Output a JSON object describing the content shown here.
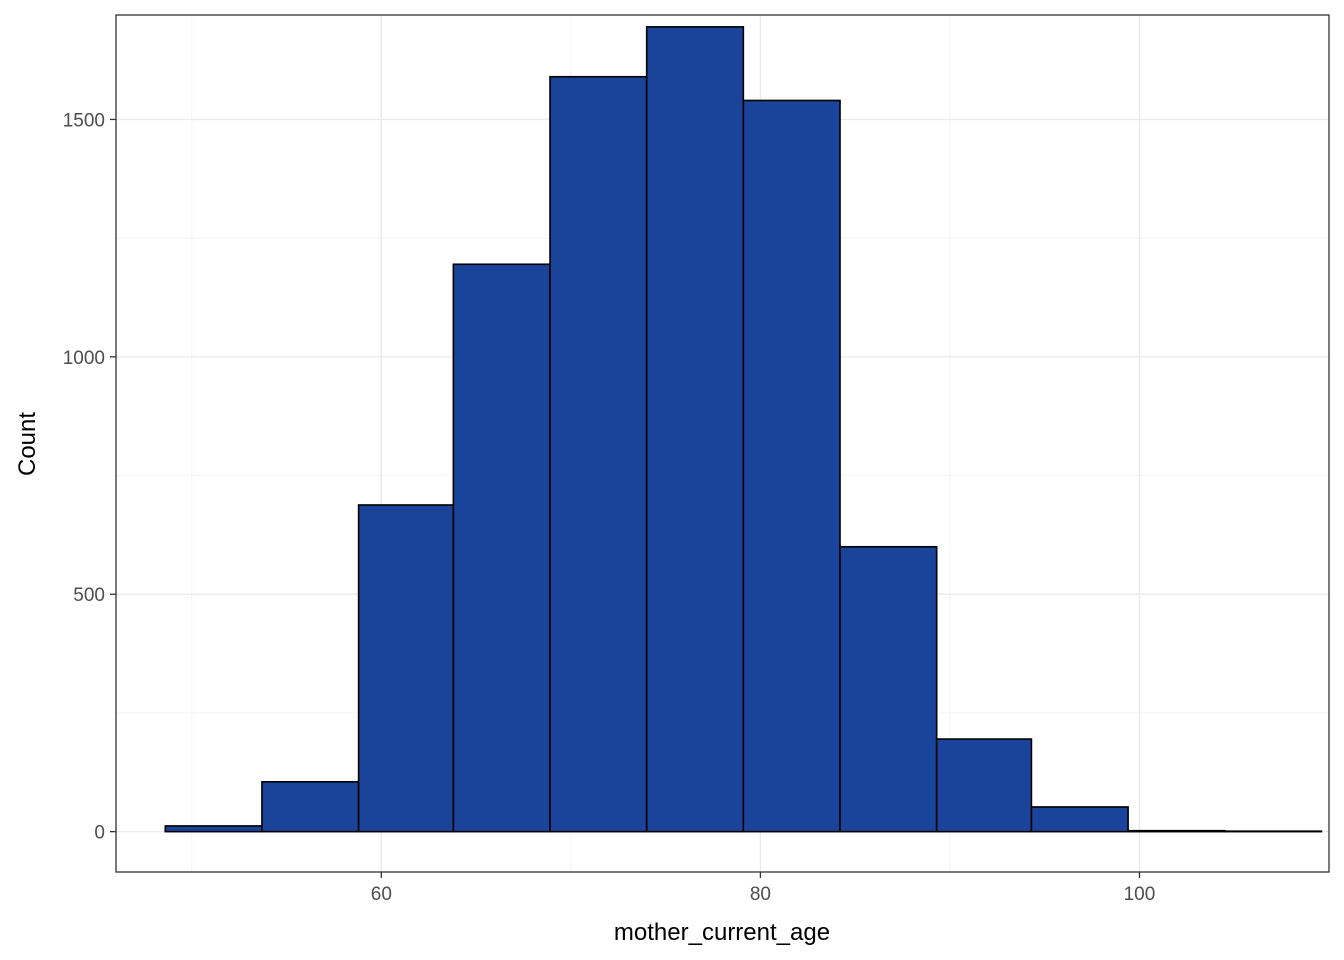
{
  "chart_data": {
    "type": "bar",
    "subtype": "histogram",
    "title": "",
    "xlabel": "mother_current_age",
    "ylabel": "Count",
    "xlim": [
      46.0,
      110.0
    ],
    "ylim": [
      -85,
      1720
    ],
    "x_ticks": [
      60,
      80,
      100
    ],
    "x_tick_labels": [
      "60",
      "80",
      "100"
    ],
    "y_ticks": [
      0,
      500,
      1000,
      1500
    ],
    "y_tick_labels": [
      "0",
      "500",
      "1000",
      "1500"
    ],
    "grid": true,
    "legend": "none",
    "bin_width": 5.08,
    "bins": [
      {
        "x_start": 48.6,
        "x_end": 53.7,
        "count": 12
      },
      {
        "x_start": 53.7,
        "x_end": 58.8,
        "count": 105
      },
      {
        "x_start": 58.8,
        "x_end": 63.8,
        "count": 688
      },
      {
        "x_start": 63.8,
        "x_end": 68.9,
        "count": 1195
      },
      {
        "x_start": 68.9,
        "x_end": 74.0,
        "count": 1590
      },
      {
        "x_start": 74.0,
        "x_end": 79.1,
        "count": 1695
      },
      {
        "x_start": 79.1,
        "x_end": 84.2,
        "count": 1540
      },
      {
        "x_start": 84.2,
        "x_end": 89.3,
        "count": 600
      },
      {
        "x_start": 89.3,
        "x_end": 94.3,
        "count": 195
      },
      {
        "x_start": 94.3,
        "x_end": 99.4,
        "count": 52
      },
      {
        "x_start": 99.4,
        "x_end": 104.5,
        "count": 2
      },
      {
        "x_start": 104.5,
        "x_end": 109.6,
        "count": 1
      }
    ],
    "colors": {
      "bar_fill": "#1a4499",
      "bar_stroke": "#000000",
      "panel_background": "#ffffff",
      "grid": "#ebebeb",
      "border": "#333333"
    }
  }
}
